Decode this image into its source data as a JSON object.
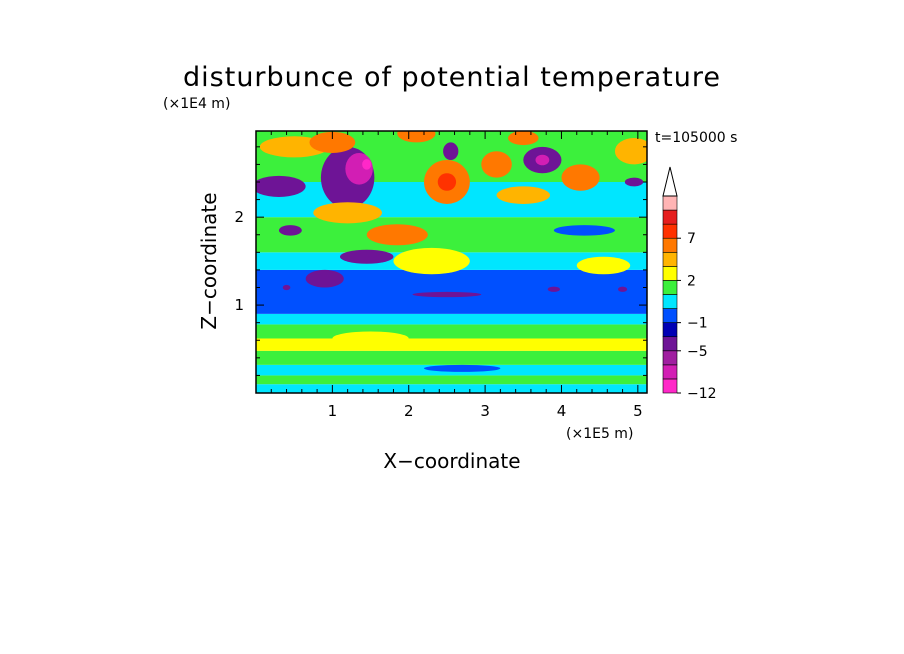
{
  "chart_data": {
    "type": "heatmap",
    "title": "disturbunce of potential temperature",
    "xlabel": "X−coordinate",
    "ylabel": "Z−coordinate",
    "x_unit": "(×1E5 m)",
    "z_unit": "(×1E4 m)",
    "time_label": "t=105000 s",
    "xlim": [
      0,
      5.12
    ],
    "zlim": [
      0,
      2.98
    ],
    "x_ticks": [
      "1",
      "2",
      "3",
      "4",
      "5"
    ],
    "z_ticks": [
      "1",
      "2"
    ],
    "colorbar": {
      "levels": [
        -12,
        -10,
        -7,
        -5,
        -3,
        -1,
        0,
        1,
        2,
        3,
        5,
        7,
        9,
        12
      ],
      "labels": [
        "−12",
        "−5",
        "−1",
        "2",
        "7"
      ],
      "label_levels": [
        -12,
        -5,
        -1,
        2,
        7
      ],
      "colors": [
        "#ff28c8",
        "#d21eb4",
        "#a01ea0",
        "#6e1496",
        "#0000b4",
        "#0050ff",
        "#00e6ff",
        "#3cf03c",
        "#ffff00",
        "#ffb400",
        "#ff7800",
        "#ff3200",
        "#e61e1e",
        "#ffb4b4"
      ],
      "extend": "max"
    },
    "bands": [
      {
        "z0": 0.0,
        "z1": 0.1,
        "value": 0.5
      },
      {
        "z0": 0.1,
        "z1": 0.2,
        "value": 1.5
      },
      {
        "z0": 0.2,
        "z1": 0.32,
        "value": 0.5
      },
      {
        "z0": 0.32,
        "z1": 0.48,
        "value": 1.5
      },
      {
        "z0": 0.48,
        "z1": 0.62,
        "value": 2.5
      },
      {
        "z0": 0.62,
        "z1": 0.78,
        "value": 1.5
      },
      {
        "z0": 0.78,
        "z1": 0.9,
        "value": 0.5
      },
      {
        "z0": 0.9,
        "z1": 1.4,
        "value": -0.5
      },
      {
        "z0": 1.4,
        "z1": 1.6,
        "value": 0.5
      },
      {
        "z0": 1.6,
        "z1": 2.0,
        "value": 1.5
      },
      {
        "z0": 2.0,
        "z1": 2.4,
        "value": 0.5
      },
      {
        "z0": 2.4,
        "z1": 2.98,
        "value": 1.5
      }
    ],
    "features": [
      {
        "x": 0.5,
        "z": 2.8,
        "rx": 0.45,
        "rz": 0.12,
        "value": 3.5
      },
      {
        "x": 0.3,
        "z": 2.35,
        "rx": 0.35,
        "rz": 0.12,
        "value": -3.5
      },
      {
        "x": 1.2,
        "z": 2.45,
        "rx": 0.35,
        "rz": 0.35,
        "value": -3.5
      },
      {
        "x": 1.35,
        "z": 2.55,
        "rx": 0.18,
        "rz": 0.18,
        "value": -8
      },
      {
        "x": 1.45,
        "z": 2.6,
        "rx": 0.06,
        "rz": 0.06,
        "value": -11
      },
      {
        "x": 1.0,
        "z": 2.85,
        "rx": 0.3,
        "rz": 0.12,
        "value": 5
      },
      {
        "x": 1.2,
        "z": 2.05,
        "rx": 0.45,
        "rz": 0.12,
        "value": 4
      },
      {
        "x": 1.85,
        "z": 1.8,
        "rx": 0.4,
        "rz": 0.12,
        "value": 5
      },
      {
        "x": 1.45,
        "z": 1.55,
        "rx": 0.35,
        "rz": 0.08,
        "value": -3.5
      },
      {
        "x": 0.9,
        "z": 1.3,
        "rx": 0.25,
        "rz": 0.1,
        "value": -3.5
      },
      {
        "x": 0.45,
        "z": 1.85,
        "rx": 0.15,
        "rz": 0.06,
        "value": -3.5
      },
      {
        "x": 2.5,
        "z": 2.4,
        "rx": 0.3,
        "rz": 0.25,
        "value": 5
      },
      {
        "x": 2.5,
        "z": 2.4,
        "rx": 0.12,
        "rz": 0.1,
        "value": 8
      },
      {
        "x": 2.55,
        "z": 2.75,
        "rx": 0.1,
        "rz": 0.1,
        "value": -3.5
      },
      {
        "x": 2.1,
        "z": 2.95,
        "rx": 0.25,
        "rz": 0.1,
        "value": 5
      },
      {
        "x": 3.15,
        "z": 2.6,
        "rx": 0.2,
        "rz": 0.15,
        "value": 5
      },
      {
        "x": 3.5,
        "z": 2.9,
        "rx": 0.2,
        "rz": 0.08,
        "value": 5
      },
      {
        "x": 3.75,
        "z": 2.65,
        "rx": 0.25,
        "rz": 0.15,
        "value": -3.5
      },
      {
        "x": 3.75,
        "z": 2.65,
        "rx": 0.09,
        "rz": 0.06,
        "value": -8
      },
      {
        "x": 4.25,
        "z": 2.45,
        "rx": 0.25,
        "rz": 0.15,
        "value": 5
      },
      {
        "x": 3.5,
        "z": 2.25,
        "rx": 0.35,
        "rz": 0.1,
        "value": 3.5
      },
      {
        "x": 4.95,
        "z": 2.75,
        "rx": 0.25,
        "rz": 0.15,
        "value": 3.5
      },
      {
        "x": 4.95,
        "z": 2.4,
        "rx": 0.12,
        "rz": 0.05,
        "value": -3.5
      },
      {
        "x": 4.3,
        "z": 1.85,
        "rx": 0.4,
        "rz": 0.06,
        "value": -0.5
      },
      {
        "x": 2.3,
        "z": 1.5,
        "rx": 0.5,
        "rz": 0.15,
        "value": 2.5
      },
      {
        "x": 4.55,
        "z": 1.45,
        "rx": 0.35,
        "rz": 0.1,
        "value": 2.5
      },
      {
        "x": 2.5,
        "z": 1.12,
        "rx": 0.45,
        "rz": 0.03,
        "value": -3.5
      },
      {
        "x": 3.9,
        "z": 1.18,
        "rx": 0.08,
        "rz": 0.03,
        "value": -3.5
      },
      {
        "x": 4.8,
        "z": 1.18,
        "rx": 0.06,
        "rz": 0.03,
        "value": -3.5
      },
      {
        "x": 0.4,
        "z": 1.2,
        "rx": 0.05,
        "rz": 0.03,
        "value": -3.5
      },
      {
        "x": 2.7,
        "z": 0.28,
        "rx": 0.5,
        "rz": 0.04,
        "value": -0.5
      },
      {
        "x": 1.5,
        "z": 0.62,
        "rx": 0.5,
        "rz": 0.08,
        "value": 2.5
      }
    ]
  }
}
